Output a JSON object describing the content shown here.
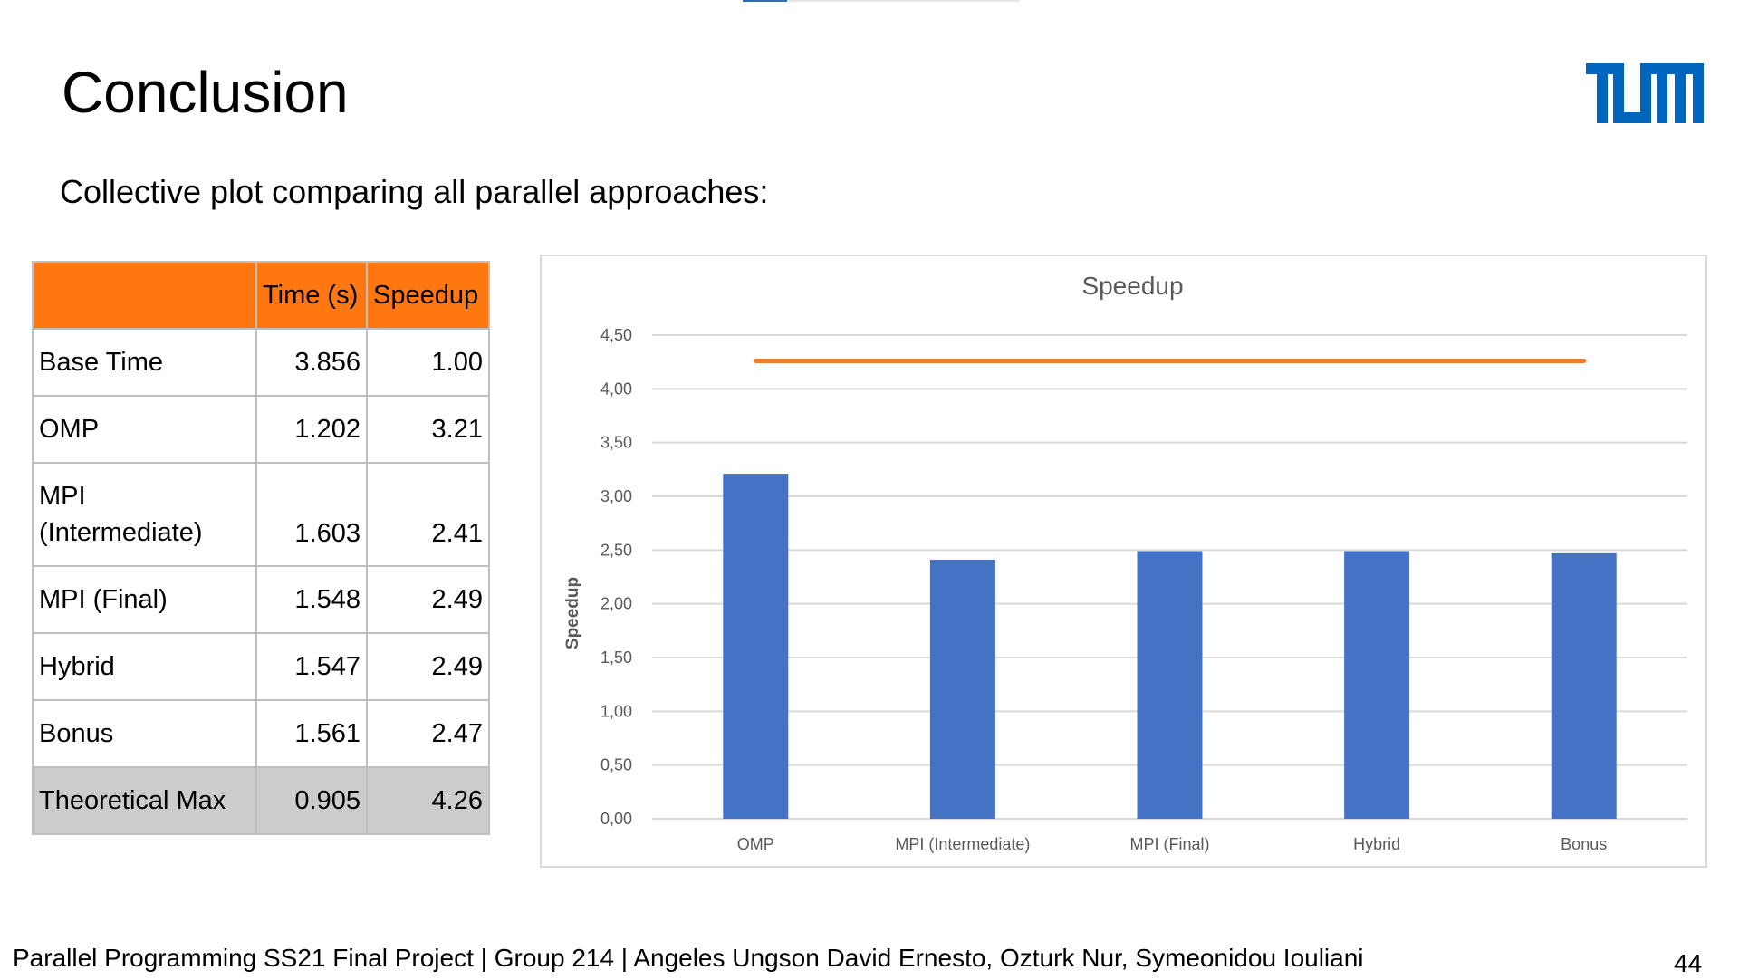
{
  "slide": {
    "title": "Conclusion",
    "subtitle": "Collective plot comparing all parallel approaches:",
    "logo_text": "TUM",
    "footer": "Parallel Programming SS21 Final Project | Group 214 | Angeles Ungson David Ernesto, Ozturk Nur, Symeonidou Iouliani",
    "page_number": "44",
    "progress_fraction": 0.16
  },
  "colors": {
    "header_orange": "#ff7711",
    "tum_blue": "#0065bd",
    "bar_blue": "#4472c4",
    "line_orange": "#ed7d31",
    "max_row_gray": "#cccccc"
  },
  "table": {
    "headers": [
      "",
      "Time (s)",
      "Speedup"
    ],
    "rows": [
      {
        "label": "Base Time",
        "time": "3.856",
        "speedup": "1.00"
      },
      {
        "label": "OMP",
        "time": "1.202",
        "speedup": "3.21"
      },
      {
        "label_line1": "MPI",
        "label_line2": "(Intermediate)",
        "time": "1.603",
        "speedup": "2.41"
      },
      {
        "label": "MPI (Final)",
        "time": "1.548",
        "speedup": "2.49"
      },
      {
        "label": "Hybrid",
        "time": "1.547",
        "speedup": "2.49"
      },
      {
        "label": "Bonus",
        "time": "1.561",
        "speedup": "2.47"
      },
      {
        "label": "Theoretical Max",
        "time": "0.905",
        "speedup": "4.26"
      }
    ]
  },
  "chart_data": {
    "type": "bar",
    "title": "Speedup",
    "ylabel": "Speedup",
    "xlabel": "",
    "categories": [
      "OMP",
      "MPI (Intermediate)",
      "MPI (Final)",
      "Hybrid",
      "Bonus"
    ],
    "series": [
      {
        "values": [
          3.21,
          2.41,
          2.49,
          2.49,
          2.47
        ],
        "color": "#4472c4",
        "kind": "bar"
      },
      {
        "values": [
          4.26,
          4.26,
          4.26,
          4.26,
          4.26
        ],
        "color": "#ed7d31",
        "kind": "line"
      }
    ],
    "ylim": [
      0,
      4.5
    ],
    "yticks": [
      0,
      0.5,
      1,
      1.5,
      2,
      2.5,
      3,
      3.5,
      4,
      4.5
    ],
    "ytick_labels": [
      "0,00",
      "0,50",
      "1,00",
      "1,50",
      "2,00",
      "2,50",
      "3,00",
      "3,50",
      "4,00",
      "4,50"
    ],
    "grid": true,
    "legend": "none"
  }
}
